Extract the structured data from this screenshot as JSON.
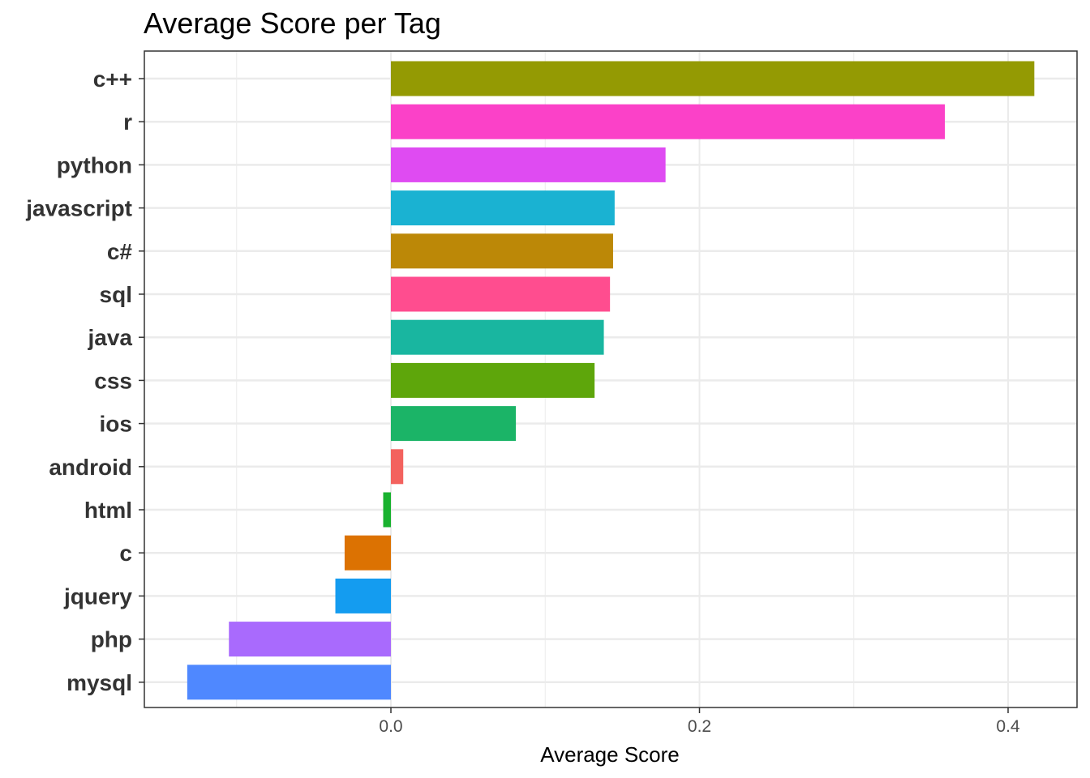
{
  "chart_data": {
    "type": "bar",
    "orientation": "horizontal",
    "title": "Average Score per Tag",
    "xlabel": "Average Score",
    "ylabel": "",
    "xlim": [
      -0.16,
      0.43
    ],
    "x_ticks": [
      0.0,
      0.2,
      0.4
    ],
    "x_tick_labels": [
      "0.0",
      "0.2",
      "0.4"
    ],
    "grid": true,
    "legend": "none",
    "categories": [
      "c++",
      "r",
      "python",
      "javascript",
      "c#",
      "sql",
      "java",
      "css",
      "ios",
      "android",
      "html",
      "c",
      "jquery",
      "php",
      "mysql"
    ],
    "values": [
      0.417,
      0.359,
      0.178,
      0.145,
      0.144,
      0.142,
      0.138,
      0.132,
      0.081,
      0.008,
      -0.005,
      -0.03,
      -0.036,
      -0.105,
      -0.132
    ],
    "colors": [
      "#949A03",
      "#FB41C8",
      "#DF4BF2",
      "#1AB2D2",
      "#BC8807",
      "#FF4D8F",
      "#19B6A0",
      "#5EA60B",
      "#1BB467",
      "#F3625E",
      "#19B22F",
      "#DC7202",
      "#149CF0",
      "#A96AFD",
      "#4F88FF"
    ]
  }
}
